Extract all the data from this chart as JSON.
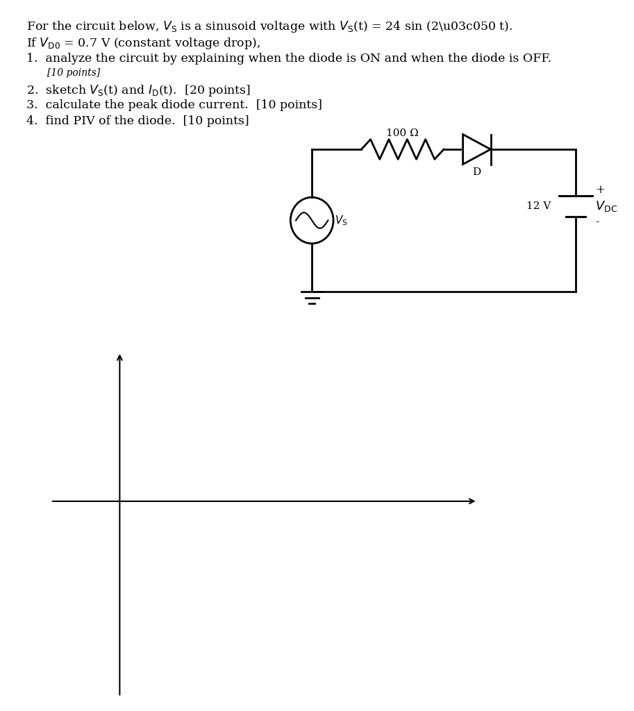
{
  "bg_color": "#ffffff",
  "text_color": "#000000",
  "circuit_R_label": "100 Ω",
  "circuit_D_label": "D",
  "circuit_VS_sub": "S",
  "circuit_V_label": "12 V",
  "circuit_VDC_sub": "DC",
  "circuit_plus": "+",
  "circuit_minus": "-",
  "font_size_main": 12.5,
  "font_size_points": 10,
  "fig_width": 9.13,
  "fig_height": 10.24
}
